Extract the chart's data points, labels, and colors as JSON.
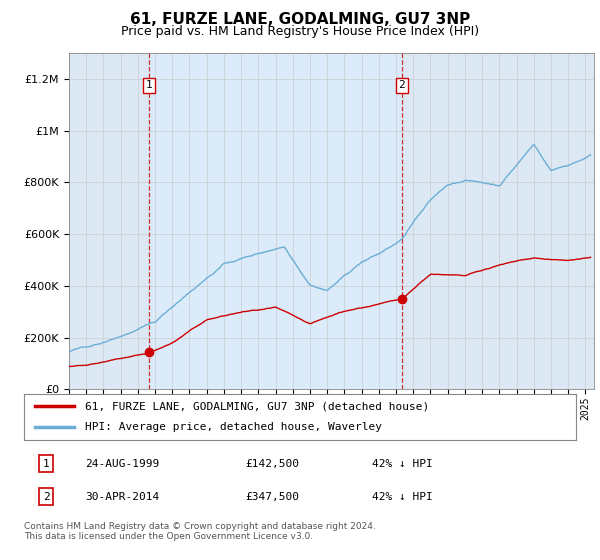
{
  "title": "61, FURZE LANE, GODALMING, GU7 3NP",
  "subtitle": "Price paid vs. HM Land Registry's House Price Index (HPI)",
  "legend_line1": "61, FURZE LANE, GODALMING, GU7 3NP (detached house)",
  "legend_line2": "HPI: Average price, detached house, Waverley",
  "annotation1_date": "24-AUG-1999",
  "annotation1_price": "£142,500",
  "annotation1_hpi": "42% ↓ HPI",
  "annotation2_date": "30-APR-2014",
  "annotation2_price": "£347,500",
  "annotation2_hpi": "42% ↓ HPI",
  "footer": "Contains HM Land Registry data © Crown copyright and database right 2024.\nThis data is licensed under the Open Government Licence v3.0.",
  "sale1_x": 1999.65,
  "sale1_y": 142500,
  "sale2_x": 2014.33,
  "sale2_y": 347500,
  "hpi_color": "#6aaed6",
  "price_color": "#cc0000",
  "background_color": "#dce9f5",
  "shade_color": "#ddeeff",
  "plot_bg": "#ffffff",
  "ylim": [
    0,
    1300000
  ],
  "xlim": [
    1995,
    2025.5
  ]
}
